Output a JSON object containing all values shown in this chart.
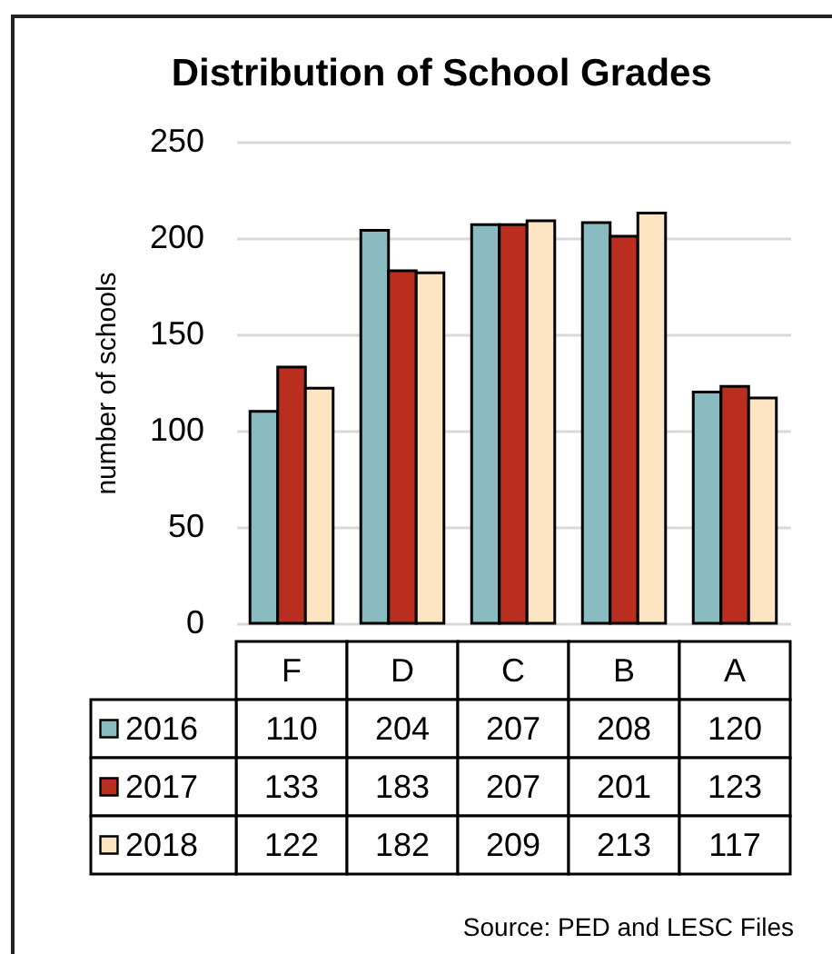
{
  "chart_data": {
    "type": "bar",
    "title": "Distribution of School Grades",
    "ylabel": "number of schools",
    "categories": [
      "F",
      "D",
      "C",
      "B",
      "A"
    ],
    "series": [
      {
        "name": "2016",
        "color": "#8abbc1",
        "values": [
          110,
          204,
          207,
          208,
          120
        ]
      },
      {
        "name": "2017",
        "color": "#b92e1f",
        "values": [
          133,
          183,
          207,
          201,
          123
        ]
      },
      {
        "name": "2018",
        "color": "#fde4c2",
        "values": [
          122,
          182,
          209,
          213,
          117
        ]
      }
    ],
    "ylim": [
      0,
      250
    ],
    "yticks": [
      0,
      50,
      100,
      150,
      200,
      250
    ],
    "grid": "y",
    "legend": "bottom",
    "data_labels": true,
    "annotations": [
      "Source: PED and LESC Files"
    ]
  }
}
